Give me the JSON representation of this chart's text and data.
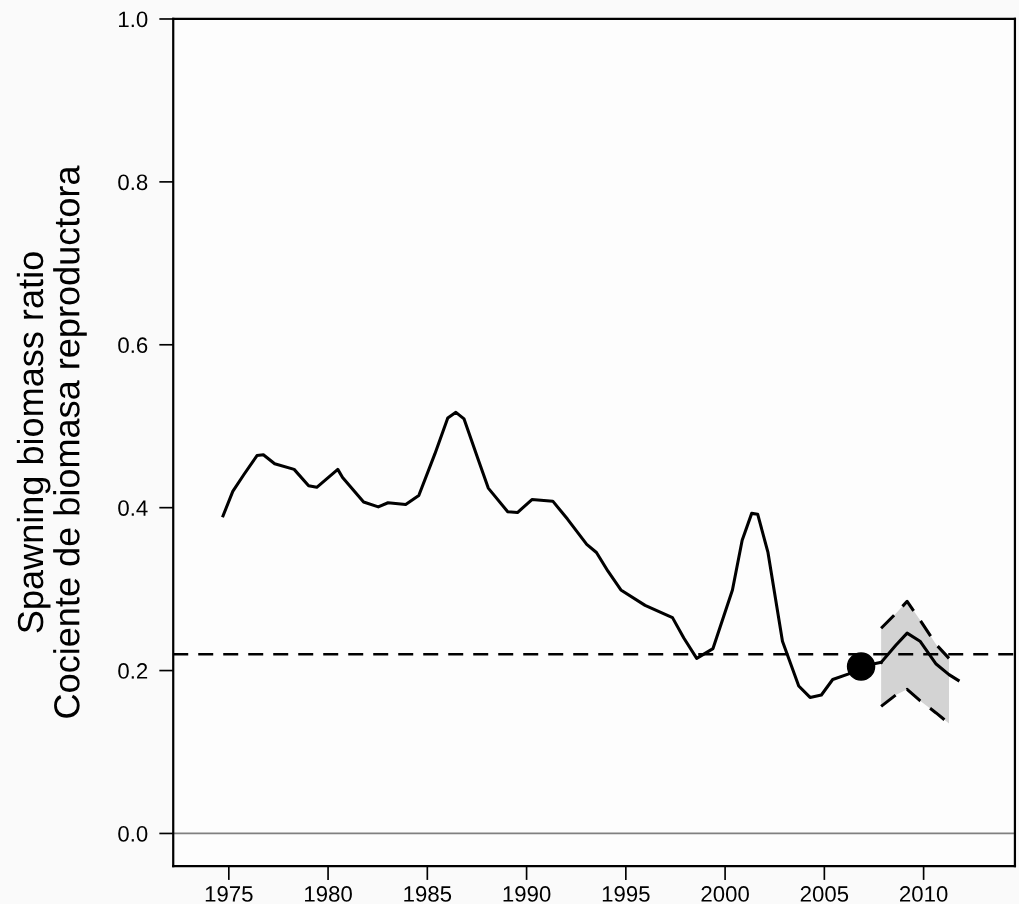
{
  "chart_data": {
    "type": "line",
    "ylabel": "Spawning biomass ratio\nCociente de biomasa reproductora",
    "xlim": [
      1972.2,
      2014.6
    ],
    "ylim": [
      -0.04,
      1.0
    ],
    "xticks": [
      1975,
      1980,
      1985,
      1990,
      1995,
      2000,
      2005,
      2010
    ],
    "yticks": [
      {
        "value": 0,
        "label": "0.0"
      },
      0.2,
      0.4,
      0.6,
      0.8,
      {
        "value": 1,
        "label": "1.0"
      }
    ],
    "grid": false,
    "legend": false,
    "ref_lines": [
      {
        "axis": "y",
        "value": 0.22,
        "color": "#000000",
        "line_style": "dashed"
      },
      {
        "axis": "y",
        "value": 0,
        "color": "#808080",
        "line_style": "solid"
      }
    ],
    "series": [
      {
        "color": "#000000",
        "x": [
          1974.71,
          1975.2,
          1975.77,
          1976.42,
          1976.74,
          1977.31,
          1978.29,
          1979.02,
          1979.43,
          1980.49,
          1980.73,
          1981.79,
          1982.53,
          1983.02,
          1983.91,
          1984.57,
          1985.38,
          1986.03,
          1986.44,
          1986.85,
          1987.58,
          1988.07,
          1989.05,
          1989.54,
          1990.27,
          1991.32,
          1992.06,
          1993.03,
          1993.52,
          1994.1,
          1994.75,
          1995.97,
          1997.35,
          1997.92,
          1998.57,
          1999.39,
          2000.37,
          2000.86,
          2001.34,
          2001.64,
          2002.16,
          2002.89,
          2003.71,
          2004.28,
          2004.85,
          2005.42,
          2006.23,
          2006.85,
          2007.86
        ],
        "values": [
          0.39,
          0.42,
          0.441,
          0.464,
          0.465,
          0.454,
          0.447,
          0.427,
          0.425,
          0.447,
          0.437,
          0.407,
          0.401,
          0.406,
          0.404,
          0.415,
          0.466,
          0.51,
          0.517,
          0.509,
          0.458,
          0.424,
          0.395,
          0.394,
          0.41,
          0.408,
          0.386,
          0.355,
          0.345,
          0.322,
          0.299,
          0.28,
          0.265,
          0.24,
          0.215,
          0.227,
          0.299,
          0.36,
          0.393,
          0.392,
          0.345,
          0.236,
          0.181,
          0.167,
          0.17,
          0.189,
          0.196,
          0.205,
          0.21
        ]
      },
      {
        "color": "#000000",
        "line_style": "dashed",
        "x": [
          2007.86,
          2008.6,
          2009.17,
          2009.82,
          2010.63,
          2011.28
        ],
        "values": [
          0.252,
          0.27,
          0.285,
          0.262,
          0.232,
          0.215
        ]
      },
      {
        "color": "#000000",
        "line_style": "dashed",
        "x": [
          2007.86,
          2008.6,
          2009.17,
          2009.82,
          2010.63,
          2011.28
        ],
        "values": [
          0.156,
          0.17,
          0.177,
          0.163,
          0.148,
          0.135
        ]
      },
      {
        "color": "#000000",
        "x": [
          2007.86,
          2008.6,
          2009.17,
          2009.82,
          2010.63,
          2011.28,
          2011.74
        ],
        "values": [
          0.21,
          0.231,
          0.246,
          0.236,
          0.208,
          0.195,
          0.188
        ],
        "upper": [
          0.252,
          0.27,
          0.285,
          0.262,
          0.232,
          0.215,
          null
        ],
        "lower": [
          0.156,
          0.17,
          0.177,
          0.163,
          0.148,
          0.135,
          null
        ]
      },
      {
        "type": "scatter",
        "color": "#000000",
        "marker": "circle",
        "x": [
          2006.85
        ],
        "values": [
          0.205
        ]
      }
    ]
  }
}
